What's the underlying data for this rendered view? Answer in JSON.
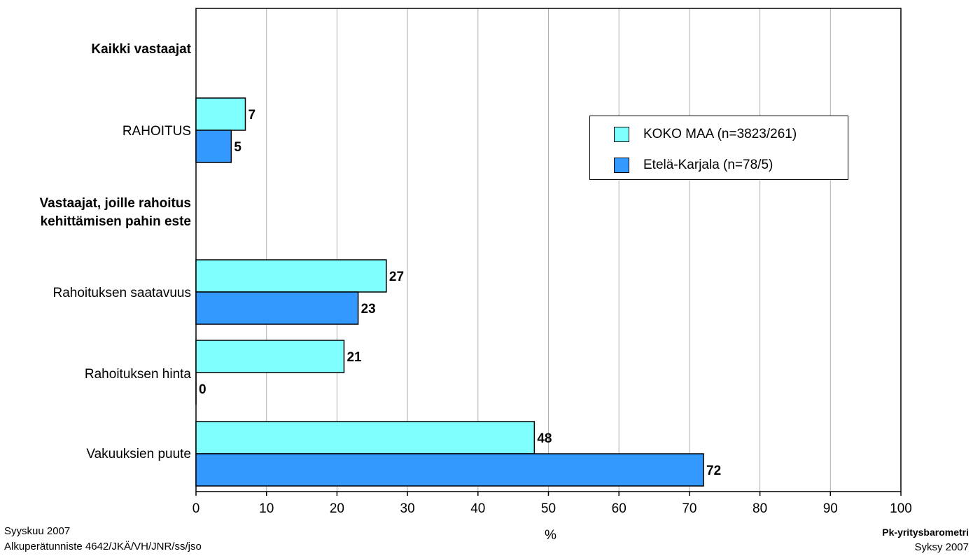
{
  "chart_data": {
    "type": "bar",
    "orientation": "horizontal",
    "categories": [
      "Kaikki vastaajat",
      "RAHOITUS",
      "Vastaajat, joille rahoitus kehittämisen pahin este",
      "Rahoituksen saatavuus",
      "Rahoituksen hinta",
      "Vakuuksien puute"
    ],
    "header_categories": [
      0,
      2
    ],
    "series": [
      {
        "name": "KOKO MAA (n=3823/261)",
        "values": [
          null,
          7,
          null,
          27,
          21,
          48
        ],
        "color": "#80ffff"
      },
      {
        "name": "Etelä-Karjala (n=78/5)",
        "values": [
          null,
          5,
          null,
          23,
          0,
          72
        ],
        "color": "#3399ff"
      }
    ],
    "xlabel": "%",
    "xlim": [
      0,
      100
    ],
    "xticks": [
      0,
      10,
      20,
      30,
      40,
      50,
      60,
      70,
      80,
      90,
      100
    ],
    "grid": true,
    "legend_position": "top-right"
  },
  "footer": {
    "left_line1": "Syyskuu 2007",
    "left_line2": "Alkuperätunniste 4642/JKÄ/VH/JNR/ss/jso",
    "right_line1": "Pk-yritysbarometri",
    "right_line2": "Syksy 2007"
  },
  "colors": {
    "series1": "#80ffff",
    "series2": "#3399ff",
    "grid": "#b0b0b0",
    "axis": "#000000"
  }
}
